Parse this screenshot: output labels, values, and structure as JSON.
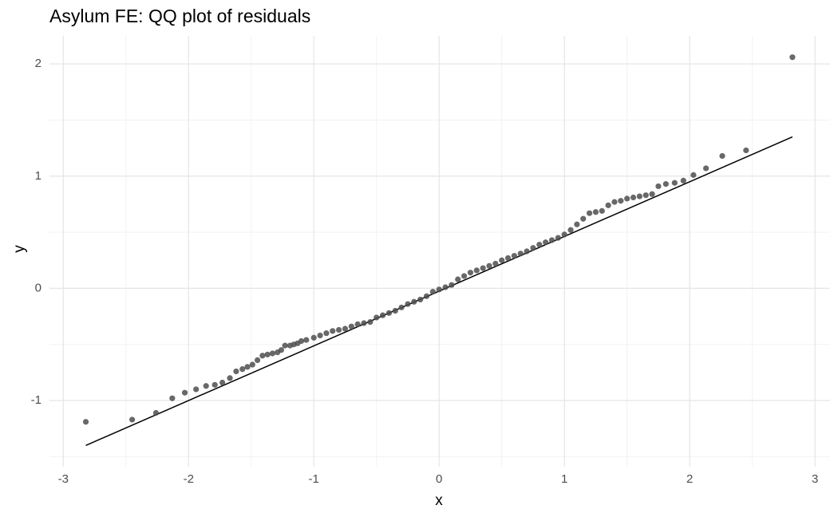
{
  "chart_data": {
    "type": "scatter",
    "title": "Asylum FE: QQ plot of residuals",
    "x_label": "x",
    "y_label": "y",
    "x": [
      -2.82,
      -2.45,
      -2.26,
      -2.13,
      -2.03,
      -1.94,
      -1.86,
      -1.79,
      -1.73,
      -1.67,
      -1.62,
      -1.57,
      -1.53,
      -1.49,
      -1.45,
      -1.41,
      -1.37,
      -1.33,
      -1.29,
      -1.26,
      -1.23,
      -1.19,
      -1.16,
      -1.13,
      -1.1,
      -1.06,
      -1.0,
      -0.95,
      -0.9,
      -0.85,
      -0.8,
      -0.75,
      -0.7,
      -0.65,
      -0.6,
      -0.55,
      -0.5,
      -0.45,
      -0.4,
      -0.35,
      -0.3,
      -0.25,
      -0.2,
      -0.15,
      -0.1,
      -0.05,
      0,
      0.05,
      0.1,
      0.15,
      0.2,
      0.25,
      0.3,
      0.35,
      0.4,
      0.45,
      0.5,
      0.55,
      0.6,
      0.65,
      0.7,
      0.75,
      0.8,
      0.85,
      0.9,
      0.95,
      1.0,
      1.05,
      1.1,
      1.15,
      1.2,
      1.25,
      1.3,
      1.35,
      1.4,
      1.45,
      1.5,
      1.55,
      1.6,
      1.65,
      1.7,
      1.75,
      1.81,
      1.88,
      1.95,
      2.03,
      2.13,
      2.26,
      2.45,
      2.82
    ],
    "values": [
      -1.19,
      -1.17,
      -1.11,
      -0.98,
      -0.93,
      -0.9,
      -0.87,
      -0.86,
      -0.84,
      -0.8,
      -0.74,
      -0.72,
      -0.7,
      -0.68,
      -0.64,
      -0.6,
      -0.59,
      -0.58,
      -0.57,
      -0.55,
      -0.51,
      -0.51,
      -0.5,
      -0.49,
      -0.47,
      -0.46,
      -0.44,
      -0.42,
      -0.4,
      -0.38,
      -0.37,
      -0.36,
      -0.34,
      -0.32,
      -0.31,
      -0.3,
      -0.26,
      -0.24,
      -0.22,
      -0.2,
      -0.17,
      -0.14,
      -0.12,
      -0.1,
      -0.07,
      -0.03,
      -0.01,
      0.01,
      0.03,
      0.08,
      0.11,
      0.14,
      0.16,
      0.18,
      0.2,
      0.22,
      0.25,
      0.27,
      0.29,
      0.31,
      0.33,
      0.36,
      0.39,
      0.41,
      0.43,
      0.45,
      0.48,
      0.52,
      0.57,
      0.62,
      0.67,
      0.68,
      0.69,
      0.74,
      0.77,
      0.78,
      0.8,
      0.81,
      0.82,
      0.83,
      0.84,
      0.91,
      0.93,
      0.94,
      0.96,
      1.01,
      1.07,
      1.18,
      1.23,
      2.06
    ],
    "color": "#4d4d4d",
    "reference_line": {
      "x": [
        -2.82,
        2.82
      ],
      "values": [
        -1.4,
        1.35
      ],
      "color": "#000000"
    },
    "xlim": [
      -3.11,
      3.12
    ],
    "ylim": [
      -1.59,
      2.25
    ],
    "xticks": [
      -3,
      -2,
      -1,
      0,
      1,
      2,
      3
    ],
    "yticks": [
      -1,
      0,
      1,
      2
    ],
    "x_minor_grid": [
      -2.5,
      -1.5,
      -0.5,
      0.5,
      1.5,
      2.5
    ],
    "y_minor_grid": [
      -1.5,
      -0.5,
      0.5,
      1.5
    ],
    "grid": true
  }
}
